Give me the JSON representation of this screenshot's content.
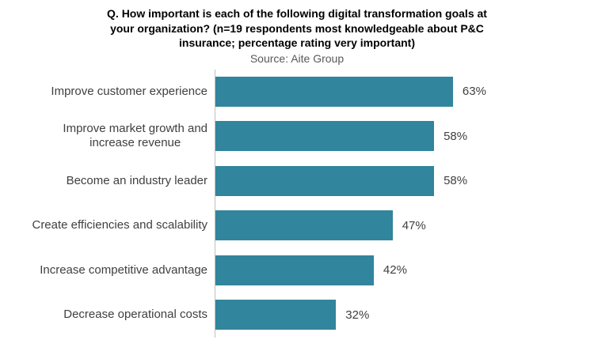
{
  "page": {
    "title_text": "Q. How important is each of the following digital transformation goals at\nyour organization? (n=19 respondents most knowledgeable about P&C\ninsurance; percentage rating very important)",
    "source_text": "Source: Aite Group"
  },
  "chart_data": {
    "type": "bar",
    "orientation": "horizontal",
    "title": "Q. How important is each of the following digital transformation goals at your organization? (n=19 respondents most knowledgeable about P&C insurance; percentage rating very important)",
    "subtitle": "Source: Aite Group",
    "categories": [
      "Improve customer experience",
      "Improve market growth and increase revenue",
      "Become an industry leader",
      "Create efficiencies and scalability",
      "Increase competitive advantage",
      "Decrease operational costs"
    ],
    "category_display": [
      "Improve customer experience",
      "Improve market growth and\nincrease revenue",
      "Become an industry leader",
      "Create efficiencies and scalability",
      "Increase competitive advantage",
      "Decrease operational costs"
    ],
    "values": [
      63,
      58,
      58,
      47,
      42,
      32
    ],
    "value_labels": [
      "63%",
      "58%",
      "58%",
      "47%",
      "42%",
      "32%"
    ],
    "unit": "percent",
    "xlim": [
      0,
      100
    ],
    "grid": false,
    "legend": false,
    "colors": {
      "bar": "#31859C",
      "axis": "#BFBFBF",
      "labels": "#3F3F3F",
      "title": "#000000",
      "source": "#595959"
    }
  }
}
